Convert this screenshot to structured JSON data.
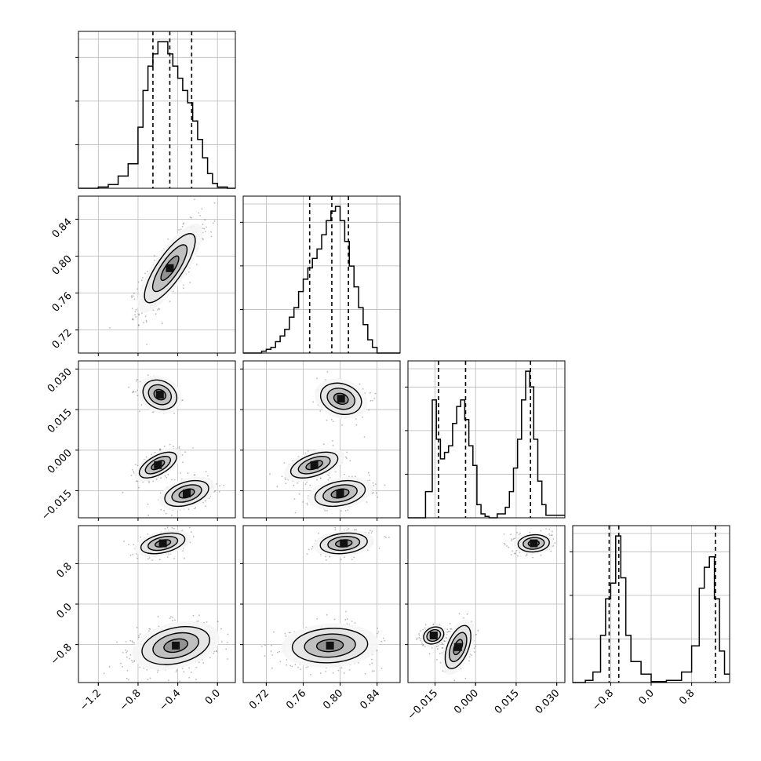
{
  "chart_data": {
    "type": "corner",
    "dimensions": 4,
    "title": "",
    "axis_labels": [
      "",
      "",
      "",
      ""
    ],
    "ranges": [
      [
        -1.4,
        0.18
      ],
      [
        0.695,
        0.865
      ],
      [
        -0.025,
        0.033
      ],
      [
        -1.55,
        1.55
      ]
    ],
    "ticks": [
      {
        "values": [
          -1.2,
          -0.8,
          -0.4,
          0.0
        ],
        "labels": [
          "−1.2",
          "−0.8",
          "−0.4",
          "0.0"
        ]
      },
      {
        "values": [
          0.72,
          0.76,
          0.8,
          0.84
        ],
        "labels": [
          "0.72",
          "0.76",
          "0.80",
          "0.84"
        ]
      },
      {
        "values": [
          -0.015,
          0.0,
          0.015,
          0.03
        ],
        "labels": [
          "−0.015",
          "0.000",
          "0.015",
          "0.030"
        ]
      },
      {
        "values": [
          -0.8,
          0.0,
          0.8
        ],
        "labels": [
          "−0.8",
          "0.0",
          "0.8"
        ]
      }
    ],
    "quantiles": [
      [
        -0.65,
        -0.48,
        -0.26
      ],
      [
        0.767,
        0.791,
        0.809
      ],
      [
        -0.0137,
        -0.0037,
        0.0203
      ],
      [
        -0.83,
        -0.64,
        1.27
      ]
    ],
    "histograms": [
      {
        "bins": [
          -1.4,
          -1.2,
          -1.1,
          -1.0,
          -0.9,
          -0.8,
          -0.75,
          -0.7,
          -0.65,
          -0.6,
          -0.55,
          -0.5,
          -0.45,
          -0.4,
          -0.35,
          -0.3,
          -0.25,
          -0.2,
          -0.15,
          -0.1,
          -0.05,
          0.0,
          0.1,
          0.18
        ],
        "counts": [
          0,
          1,
          3,
          10,
          20,
          50,
          80,
          100,
          110,
          120,
          120,
          110,
          100,
          90,
          80,
          70,
          55,
          40,
          25,
          12,
          4,
          1,
          0
        ]
      },
      {
        "bins": [
          0.695,
          0.715,
          0.72,
          0.725,
          0.73,
          0.735,
          0.74,
          0.745,
          0.75,
          0.755,
          0.76,
          0.765,
          0.77,
          0.775,
          0.78,
          0.785,
          0.79,
          0.795,
          0.8,
          0.805,
          0.81,
          0.815,
          0.82,
          0.825,
          0.83,
          0.835,
          0.84,
          0.865
        ],
        "counts": [
          0,
          2,
          4,
          6,
          12,
          18,
          25,
          38,
          48,
          65,
          78,
          90,
          100,
          110,
          125,
          140,
          150,
          155,
          140,
          118,
          92,
          70,
          48,
          30,
          14,
          6,
          0
        ]
      },
      {
        "bins": [
          -0.025,
          -0.0185,
          -0.016,
          -0.0145,
          -0.013,
          -0.0115,
          -0.01,
          -0.0085,
          -0.007,
          -0.0055,
          -0.004,
          -0.0025,
          -0.001,
          0.0005,
          0.002,
          0.0035,
          0.005,
          0.008,
          0.011,
          0.0125,
          0.014,
          0.0155,
          0.017,
          0.0185,
          0.02,
          0.0215,
          0.023,
          0.0245,
          0.026,
          0.033
        ],
        "counts": [
          0,
          20,
          90,
          60,
          45,
          50,
          55,
          72,
          85,
          90,
          75,
          55,
          40,
          10,
          3,
          1,
          0,
          3,
          8,
          20,
          38,
          60,
          90,
          112,
          100,
          60,
          28,
          10,
          2
        ]
      },
      {
        "bins": [
          -1.55,
          -1.3,
          -1.15,
          -1.0,
          -0.9,
          -0.8,
          -0.7,
          -0.6,
          -0.5,
          -0.4,
          -0.2,
          0.0,
          0.3,
          0.6,
          0.8,
          0.95,
          1.05,
          1.15,
          1.25,
          1.35,
          1.45,
          1.55
        ],
        "counts": [
          0,
          2,
          10,
          45,
          80,
          95,
          140,
          100,
          45,
          20,
          8,
          1,
          2,
          10,
          35,
          90,
          110,
          120,
          80,
          30,
          8
        ]
      }
    ],
    "scatter_panels": [
      {
        "row": 1,
        "col": 0,
        "blobs": [
          {
            "mx": -0.48,
            "my": 0.787,
            "sx": 0.15,
            "sy": 0.022,
            "rho": 0.8,
            "n": 900
          }
        ]
      },
      {
        "row": 2,
        "col": 0,
        "blobs": [
          {
            "mx": -0.58,
            "my": 0.0205,
            "sx": 0.1,
            "sy": 0.0032,
            "rho": -0.2,
            "n": 280
          },
          {
            "mx": -0.6,
            "my": -0.0055,
            "sx": 0.11,
            "sy": 0.0028,
            "rho": 0.6,
            "n": 320
          },
          {
            "mx": -0.31,
            "my": -0.016,
            "sx": 0.13,
            "sy": 0.0028,
            "rho": 0.4,
            "n": 320
          }
        ]
      },
      {
        "row": 2,
        "col": 1,
        "blobs": [
          {
            "mx": 0.801,
            "my": 0.019,
            "sx": 0.013,
            "sy": 0.0034,
            "rho": -0.2,
            "n": 280
          },
          {
            "mx": 0.772,
            "my": -0.0055,
            "sx": 0.015,
            "sy": 0.0028,
            "rho": 0.5,
            "n": 320
          },
          {
            "mx": 0.8,
            "my": -0.016,
            "sx": 0.016,
            "sy": 0.0028,
            "rho": 0.3,
            "n": 320
          }
        ]
      },
      {
        "row": 3,
        "col": 0,
        "blobs": [
          {
            "mx": -0.55,
            "my": 1.2,
            "sx": 0.13,
            "sy": 0.12,
            "rho": 0.4,
            "n": 320
          },
          {
            "mx": -0.42,
            "my": -0.82,
            "sx": 0.2,
            "sy": 0.22,
            "rho": 0.3,
            "n": 620
          }
        ]
      },
      {
        "row": 3,
        "col": 1,
        "blobs": [
          {
            "mx": 0.804,
            "my": 1.2,
            "sx": 0.015,
            "sy": 0.12,
            "rho": 0.2,
            "n": 320
          },
          {
            "mx": 0.789,
            "my": -0.82,
            "sx": 0.024,
            "sy": 0.2,
            "rho": 0.1,
            "n": 620
          }
        ]
      },
      {
        "row": 3,
        "col": 2,
        "blobs": [
          {
            "mx": 0.0215,
            "my": 1.2,
            "sx": 0.0034,
            "sy": 0.1,
            "rho": 0.1,
            "n": 320
          },
          {
            "mx": -0.0155,
            "my": -0.62,
            "sx": 0.0022,
            "sy": 0.1,
            "rho": 0.2,
            "n": 300
          },
          {
            "mx": -0.0065,
            "my": -0.85,
            "sx": 0.0028,
            "sy": 0.25,
            "rho": 0.5,
            "n": 320
          }
        ]
      }
    ],
    "grid": true,
    "legend": "none"
  }
}
